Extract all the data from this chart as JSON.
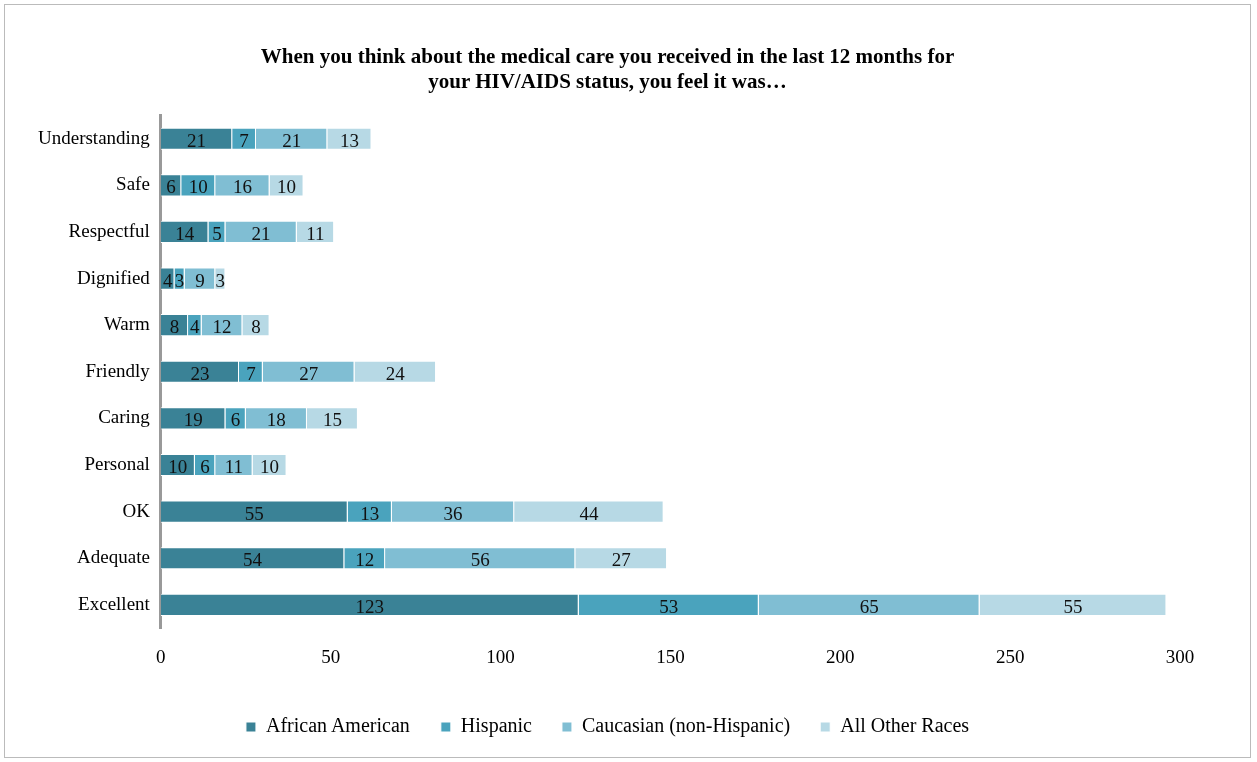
{
  "chart_data": {
    "type": "bar",
    "orientation": "horizontal",
    "stacked": true,
    "title": "When you think about the medical care you received in the last 12 months for your HIV/AIDS status, you feel it was…",
    "categories": [
      "Understanding",
      "Safe",
      "Respectful",
      "Dignified",
      "Warm",
      "Friendly",
      "Caring",
      "Personal",
      "OK",
      "Adequate",
      "Excellent"
    ],
    "series": [
      {
        "name": "African American",
        "color": "#3a8296",
        "values": [
          21,
          6,
          14,
          4,
          8,
          23,
          19,
          10,
          55,
          54,
          123
        ]
      },
      {
        "name": "Hispanic",
        "color": "#4aa3bd",
        "values": [
          7,
          10,
          5,
          3,
          4,
          7,
          6,
          6,
          13,
          12,
          53
        ]
      },
      {
        "name": "Caucasian (non-Hispanic)",
        "color": "#80bed3",
        "values": [
          21,
          16,
          21,
          9,
          12,
          27,
          18,
          11,
          36,
          56,
          65
        ]
      },
      {
        "name": "All Other Races",
        "color": "#b7d9e5",
        "values": [
          13,
          10,
          11,
          3,
          8,
          24,
          15,
          10,
          44,
          27,
          55
        ]
      }
    ],
    "xlim": [
      0,
      300
    ],
    "xticks": [
      0,
      50,
      100,
      150,
      200,
      250,
      300
    ],
    "grid": false,
    "legend": "bottom",
    "data_labels": true
  }
}
